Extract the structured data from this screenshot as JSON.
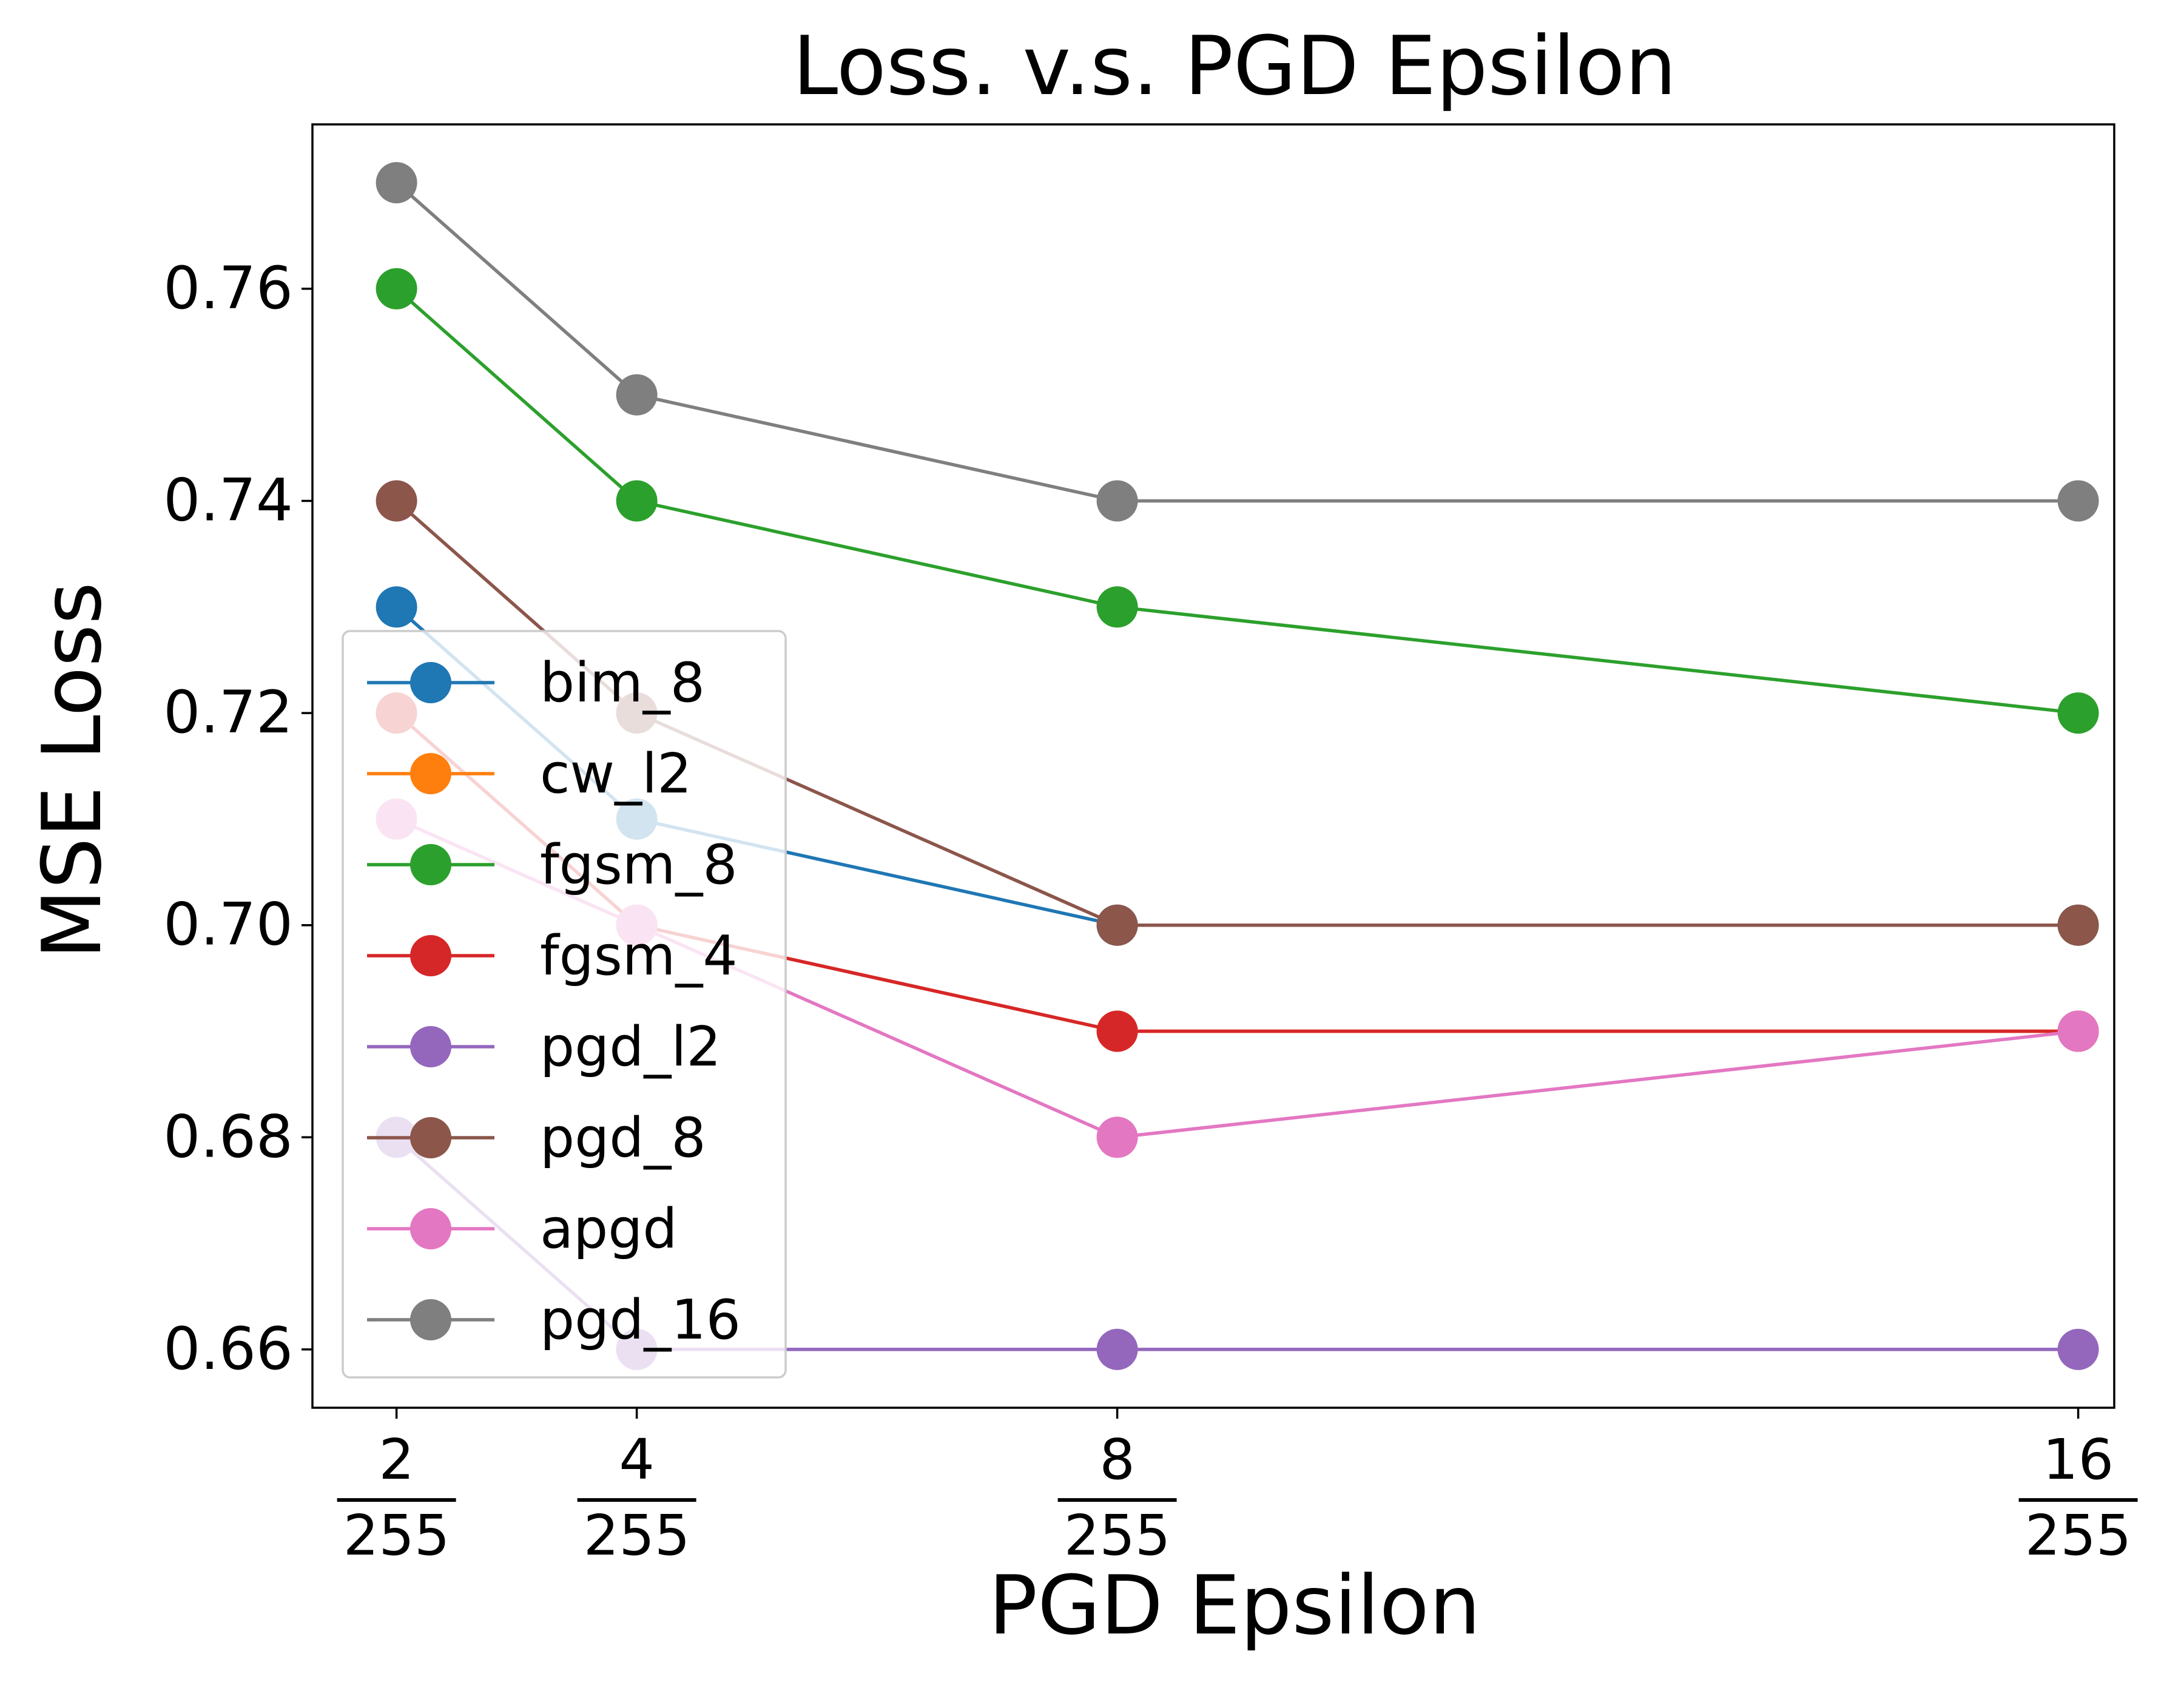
{
  "chart_data": {
    "type": "line",
    "title": "Loss. v.s. PGD Epsilon",
    "xlabel": "PGD Epsilon",
    "ylabel": "MSE Loss",
    "x": [
      2,
      4,
      8,
      16
    ],
    "x_tick_labels": [
      {
        "num": "2",
        "den": "255"
      },
      {
        "num": "4",
        "den": "255"
      },
      {
        "num": "8",
        "den": "255"
      },
      {
        "num": "16",
        "den": "255"
      }
    ],
    "xlim": [
      1.3,
      16.3
    ],
    "ylim": [
      0.6545,
      0.7755
    ],
    "y_ticks": [
      0.66,
      0.68,
      0.7,
      0.72,
      0.74,
      0.76
    ],
    "y_tick_labels": [
      "0.66",
      "0.68",
      "0.70",
      "0.72",
      "0.74",
      "0.76"
    ],
    "grid": false,
    "legend_position": "lower-left",
    "series": [
      {
        "name": "bim_8",
        "color": "#1f77b4",
        "values": [
          0.73,
          0.71,
          0.7,
          0.7
        ]
      },
      {
        "name": "cw_l2",
        "color": "#ff7f0e",
        "values": [
          0.72,
          0.7,
          0.69,
          0.69
        ]
      },
      {
        "name": "fgsm_8",
        "color": "#2ca02c",
        "values": [
          0.76,
          0.74,
          0.73,
          0.72
        ]
      },
      {
        "name": "fgsm_4",
        "color": "#d62728",
        "values": [
          0.72,
          0.7,
          0.69,
          0.69
        ]
      },
      {
        "name": "pgd_l2",
        "color": "#9467bd",
        "values": [
          0.68,
          0.66,
          0.66,
          0.66
        ]
      },
      {
        "name": "pgd_8",
        "color": "#8c564b",
        "values": [
          0.74,
          0.72,
          0.7,
          0.7
        ]
      },
      {
        "name": "apgd",
        "color": "#e377c2",
        "values": [
          0.71,
          0.7,
          0.68,
          0.69
        ]
      },
      {
        "name": "pgd_16",
        "color": "#7f7f7f",
        "values": [
          0.77,
          0.75,
          0.74,
          0.74
        ]
      }
    ]
  }
}
